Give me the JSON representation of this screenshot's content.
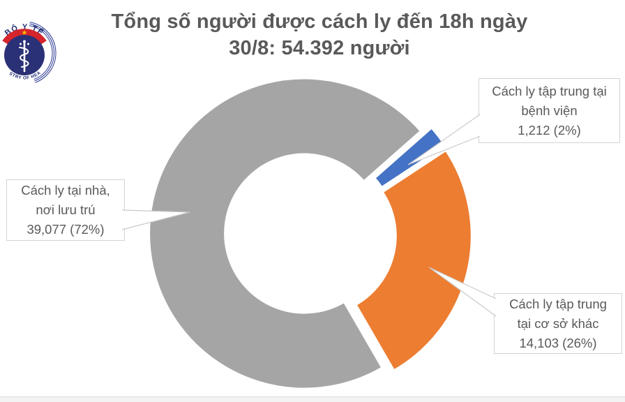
{
  "title": {
    "line1": "Tổng số người được cách ly đến 18h ngày",
    "line2": "30/8: 54.392 người"
  },
  "logo": {
    "top_text": "BỘ Y TẾ",
    "bottom_text": "MINISTRY OF HEALTH",
    "navy": "#2b3176",
    "red": "#d6252c",
    "gold": "#f5c400"
  },
  "chart_data": {
    "type": "pie",
    "subtype": "doughnut-exploded",
    "title": "Tổng số người được cách ly đến 18h ngày 30/8: 54.392 người",
    "total": 54392,
    "start_angle_deg": 48.6,
    "direction": "clockwise",
    "legend_position": "none",
    "slices": [
      {
        "key": "benh-vien",
        "name": "Cách ly tập trung tại bệnh viện",
        "value": 1212,
        "pct": 2,
        "color": "#4472c4",
        "label_lines": [
          "Cách ly tập trung tại",
          "bệnh viện",
          "1,212 (2%)"
        ]
      },
      {
        "key": "co-so-khac",
        "name": "Cách ly tập trung tại cơ sở khác",
        "value": 14103,
        "pct": 26,
        "color": "#ed7d31",
        "label_lines": [
          "Cách ly tập trung",
          "tại cơ sở khác",
          "14,103 (26%)"
        ]
      },
      {
        "key": "nha",
        "name": "Cách ly tại nhà, nơi lưu trú",
        "value": 39077,
        "pct": 72,
        "color": "#a5a5a5",
        "label_lines": [
          "Cách ly tại nhà,",
          "nơi lưu trú",
          "39,077 (72%)"
        ]
      }
    ]
  }
}
